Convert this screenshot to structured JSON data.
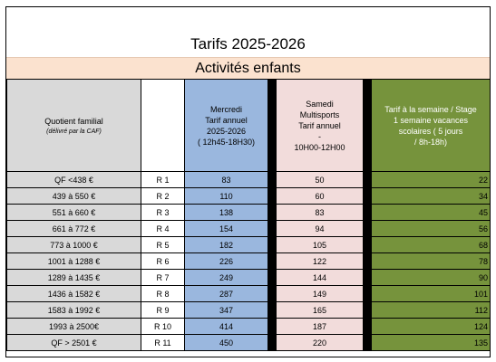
{
  "title": "Tarifs 2025-2026",
  "subtitle": "Activités enfants",
  "headers": {
    "qf_main": "Quotient familial",
    "qf_sub": "(délivré par la CAF)",
    "wednesday": "Mercredi\nTarif  annuel\n2025-2026\n( 12h45-18H30)",
    "saturday": "Samedi\nMultisports\nTarif annuel\n-\n10H00-12H00",
    "week": "Tarif à la semaine / Stage\n1 semaine   vacances\nscolaires          ( 5 jours\n/ 8h-18h)"
  },
  "rows": [
    {
      "qf": "QF <438 €",
      "r": "R 1",
      "wed": "83",
      "sat": "50",
      "week": "22"
    },
    {
      "qf": "439 à 550 €",
      "r": "R 2",
      "wed": "110",
      "sat": "60",
      "week": "34"
    },
    {
      "qf": "551 à 660 €",
      "r": "R 3",
      "wed": "138",
      "sat": "83",
      "week": "45"
    },
    {
      "qf": "661 à 772 €",
      "r": "R 4",
      "wed": "154",
      "sat": "94",
      "week": "56"
    },
    {
      "qf": "773 à 1000 €",
      "r": "R 5",
      "wed": "182",
      "sat": "105",
      "week": "68"
    },
    {
      "qf": "1001 à 1288 €",
      "r": "R 6",
      "wed": "226",
      "sat": "122",
      "week": "78"
    },
    {
      "qf": "1289 à 1435 €",
      "r": "R 7",
      "wed": "249",
      "sat": "144",
      "week": "90"
    },
    {
      "qf": "1436 à 1582 €",
      "r": "R 8",
      "wed": "287",
      "sat": "149",
      "week": "101"
    },
    {
      "qf": "1583 à 1992 €",
      "r": "R 9",
      "wed": "347",
      "sat": "165",
      "week": "112"
    },
    {
      "qf": "1993 à 2500€",
      "r": "R 10",
      "wed": "414",
      "sat": "187",
      "week": "124"
    },
    {
      "qf": "QF > 2501 €",
      "r": "R 11",
      "wed": "450",
      "sat": "220",
      "week": "135"
    }
  ]
}
